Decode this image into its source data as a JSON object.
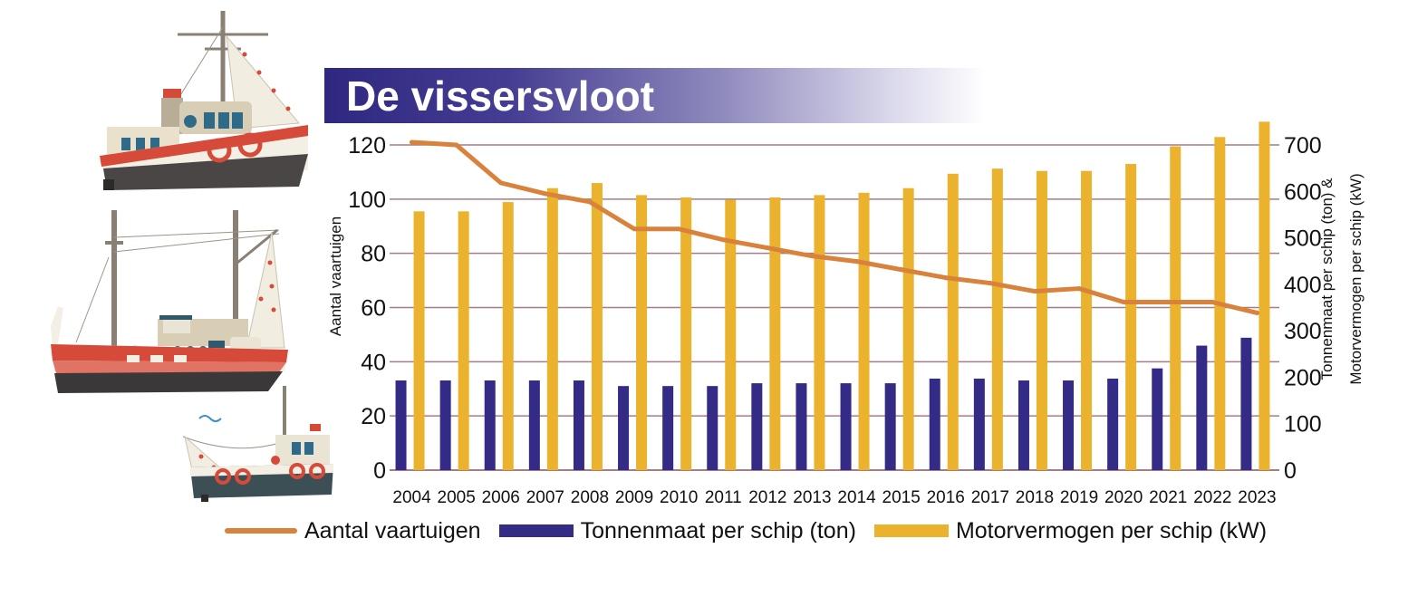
{
  "colors": {
    "line": "#d9823c",
    "tonnage": "#332b85",
    "power": "#eab22d",
    "grid": "#a57d85",
    "title_band": "#2f2880"
  },
  "chart_data": {
    "type": "bar",
    "title": "De vissersvloot",
    "categories": [
      "2004",
      "2005",
      "2006",
      "2007",
      "2008",
      "2009",
      "2010",
      "2011",
      "2012",
      "2013",
      "2014",
      "2015",
      "2016",
      "2017",
      "2018",
      "2019",
      "2020",
      "2021",
      "2022",
      "2023"
    ],
    "left_axis": {
      "label": "Aantal vaartuigen",
      "range": [
        0,
        120
      ],
      "ticks": [
        0,
        20,
        40,
        60,
        80,
        100,
        120
      ]
    },
    "right_axis": {
      "label_line1": "Tonnenmaat per schip (ton) &",
      "label_line2": "Motorvermogen per schip (kW)",
      "range": [
        0,
        700
      ],
      "ticks": [
        0,
        100,
        200,
        300,
        400,
        500,
        600,
        700
      ]
    },
    "grid": true,
    "legend_position": "bottom",
    "series": [
      {
        "name": "Aantal vaartuigen",
        "type": "line",
        "axis": "left",
        "values": [
          121,
          120,
          106,
          102,
          99,
          89,
          89,
          85,
          82,
          79,
          77,
          74,
          71,
          69,
          66,
          67,
          62,
          62,
          62,
          58
        ]
      },
      {
        "name": "Tonnenmaat per schip (ton)",
        "type": "bar",
        "axis": "right",
        "values": [
          193,
          193,
          193,
          193,
          193,
          181,
          181,
          181,
          187,
          187,
          187,
          187,
          197,
          197,
          193,
          193,
          197,
          219,
          268,
          285
        ]
      },
      {
        "name": "Motorvermogen per schip (kW)",
        "type": "bar",
        "axis": "right",
        "values": [
          557,
          557,
          577,
          607,
          618,
          592,
          587,
          582,
          587,
          592,
          597,
          607,
          638,
          649,
          644,
          644,
          659,
          697,
          717,
          750
        ]
      }
    ]
  }
}
